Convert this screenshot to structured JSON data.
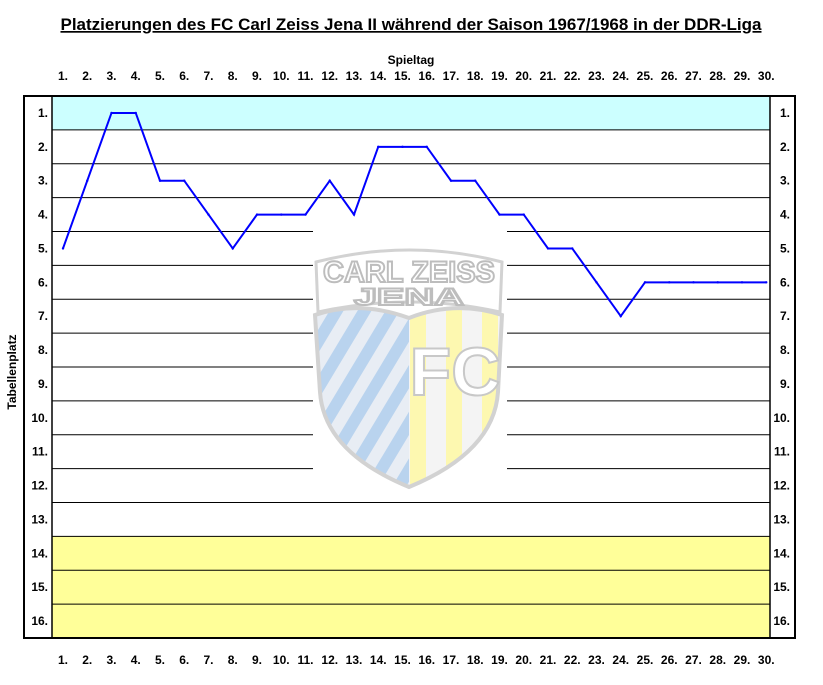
{
  "chart_data": {
    "type": "line",
    "title": "Platzierungen des FC Carl Zeiss Jena II während der Saison 1967/1968 in der DDR-Liga",
    "xlabel": "Spieltag",
    "ylabel": "Tabellenplatz",
    "x_ticks": [
      "1.",
      "2.",
      "3.",
      "4.",
      "5.",
      "6.",
      "7.",
      "8.",
      "9.",
      "10.",
      "11.",
      "12.",
      "13.",
      "14.",
      "15.",
      "16.",
      "17.",
      "18.",
      "19.",
      "20.",
      "21.",
      "22.",
      "23.",
      "24.",
      "25.",
      "26.",
      "27.",
      "28.",
      "29.",
      "30."
    ],
    "y_ticks": [
      "1.",
      "2.",
      "3.",
      "4.",
      "5.",
      "6.",
      "7.",
      "8.",
      "9.",
      "10.",
      "11.",
      "12.",
      "13.",
      "14.",
      "15.",
      "16."
    ],
    "ylim": [
      1,
      16
    ],
    "y_inverted": true,
    "grid": true,
    "series": [
      {
        "x": [
          1,
          2,
          3,
          4,
          5,
          6,
          7,
          8,
          9,
          10,
          11,
          12,
          13,
          14,
          15,
          16,
          17,
          18,
          19,
          20,
          21,
          22,
          23,
          24,
          25,
          26,
          27,
          28,
          29,
          30
        ],
        "values": [
          5,
          3,
          1,
          1,
          3,
          3,
          4,
          5,
          4,
          4,
          4,
          3,
          4,
          2,
          2,
          2,
          3,
          3,
          4,
          4,
          5,
          5,
          6,
          7,
          6,
          6,
          6,
          6,
          6,
          6
        ],
        "color": "#0000ff"
      }
    ],
    "bands": [
      {
        "from": 1,
        "to": 1,
        "color": "#ccffff"
      },
      {
        "from": 14,
        "to": 16,
        "color": "#ffff99"
      }
    ]
  },
  "logo": {
    "text_top": "CARL ZEISS",
    "text_mid": "JENA",
    "text_fc": "FC"
  }
}
